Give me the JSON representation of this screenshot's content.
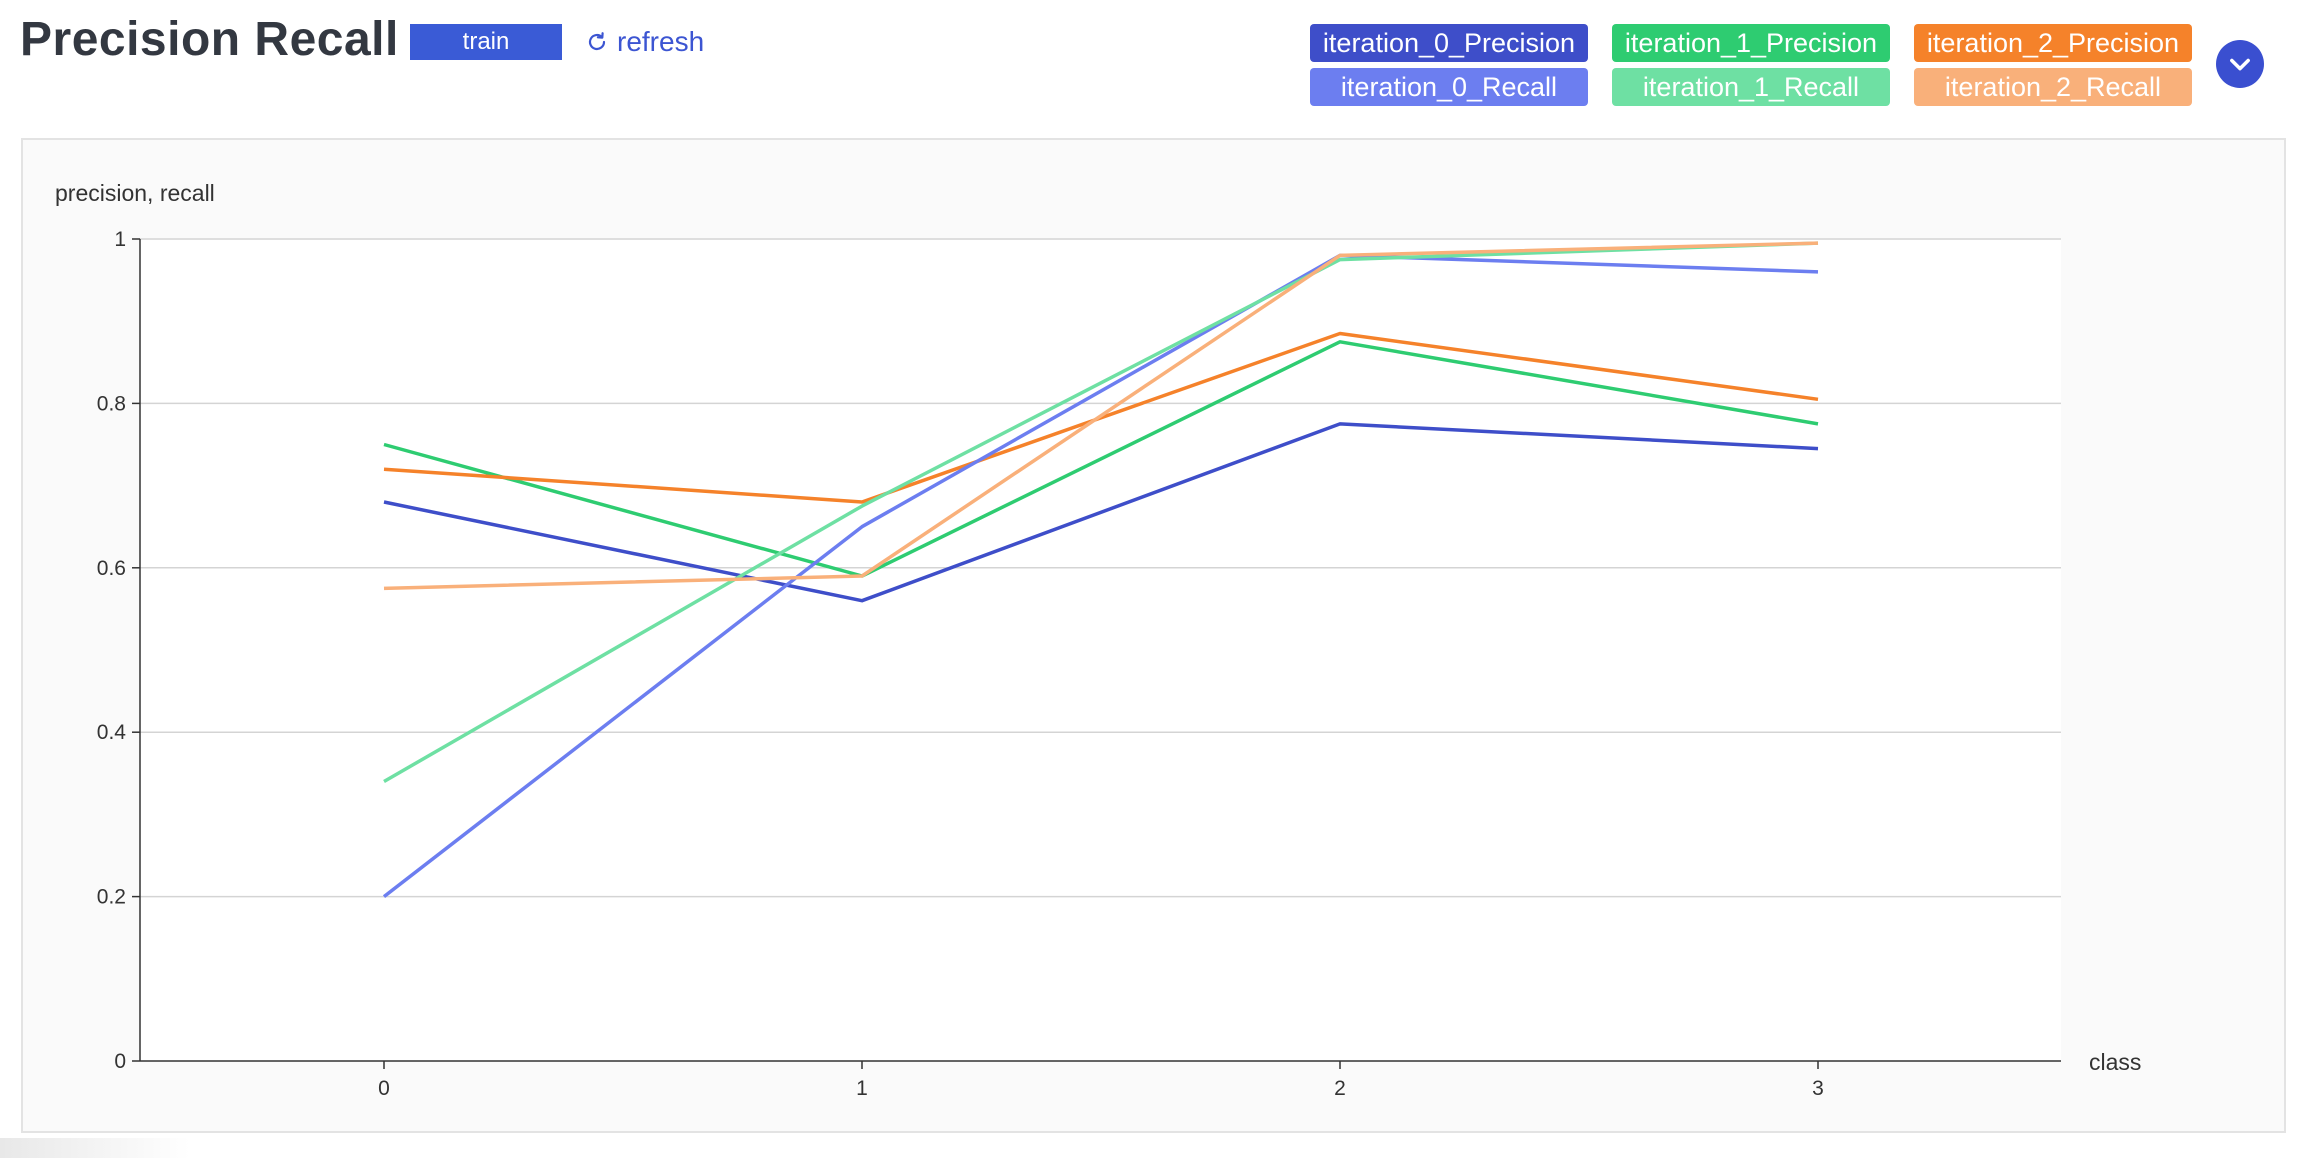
{
  "header": {
    "title": "Precision Recall",
    "tag_label": "train",
    "refresh_label": "refresh"
  },
  "legend": [
    {
      "label": "iteration_0_Precision",
      "color": "#3e4ec9"
    },
    {
      "label": "iteration_1_Precision",
      "color": "#2ecc71"
    },
    {
      "label": "iteration_2_Precision",
      "color": "#f5822a"
    },
    {
      "label": "iteration_0_Recall",
      "color": "#6c7ef0"
    },
    {
      "label": "iteration_1_Recall",
      "color": "#6ee0a3"
    },
    {
      "label": "iteration_2_Recall",
      "color": "#f9b07a"
    }
  ],
  "chart_data": {
    "type": "line",
    "ylabel": "precision, recall",
    "xlabel": "class",
    "x": [
      0,
      1,
      2,
      3
    ],
    "x_tick_labels": [
      "0",
      "1",
      "2",
      "3"
    ],
    "ylim": [
      0,
      1
    ],
    "y_ticks": [
      0,
      0.2,
      0.4,
      0.6,
      0.8,
      1
    ],
    "y_tick_labels": [
      "0",
      "0.2",
      "0.4",
      "0.6",
      "0.8",
      "1"
    ],
    "grid": true,
    "legend_position": "top-right",
    "series": [
      {
        "name": "iteration_0_Precision",
        "color": "#3e4ec9",
        "values": [
          0.68,
          0.56,
          0.775,
          0.745
        ]
      },
      {
        "name": "iteration_1_Precision",
        "color": "#2ecc71",
        "values": [
          0.75,
          0.59,
          0.875,
          0.775
        ]
      },
      {
        "name": "iteration_2_Precision",
        "color": "#f5822a",
        "values": [
          0.72,
          0.68,
          0.885,
          0.805
        ]
      },
      {
        "name": "iteration_0_Recall",
        "color": "#6c7ef0",
        "values": [
          0.2,
          0.65,
          0.98,
          0.96
        ]
      },
      {
        "name": "iteration_1_Recall",
        "color": "#6ee0a3",
        "values": [
          0.34,
          0.675,
          0.975,
          0.995
        ]
      },
      {
        "name": "iteration_2_Recall",
        "color": "#f9b07a",
        "values": [
          0.575,
          0.59,
          0.98,
          0.995
        ]
      }
    ]
  }
}
